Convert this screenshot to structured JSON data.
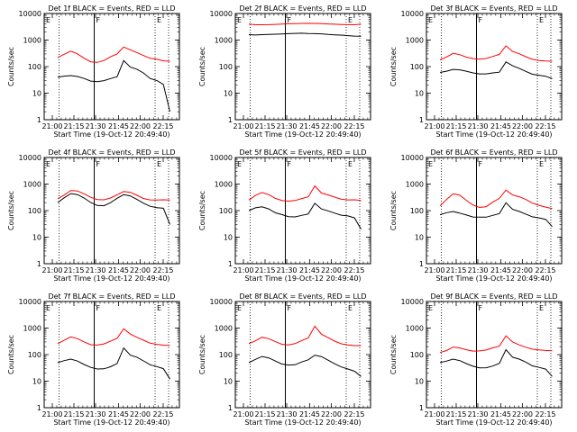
{
  "chart_data": [
    {
      "type": "line",
      "title": "Det 1f BLACK = Events, RED = LLD",
      "xlabel": "Start Time (19-Oct-12 20:49:40)",
      "ylabel": "Counts/sec",
      "yscale": "log",
      "ylim": [
        1,
        10000
      ],
      "xlim": [
        0,
        90
      ],
      "x_ticks": [
        "21:00",
        "21:15",
        "21:30",
        "21:45",
        "22:00",
        "22:15"
      ],
      "y_ticks": [
        "1",
        "10",
        "100",
        "1000",
        "10000"
      ],
      "markers": [
        "E",
        "F",
        "E"
      ],
      "series": [
        {
          "name": "Events",
          "color": "#000000",
          "values": [
            40,
            45,
            48,
            45,
            38,
            30,
            28,
            30,
            35,
            40,
            160,
            90,
            75,
            55,
            35,
            30,
            22,
            2
          ]
        },
        {
          "name": "LLD",
          "color": "#ff0000",
          "values": [
            220,
            300,
            400,
            320,
            220,
            160,
            150,
            170,
            230,
            290,
            520,
            400,
            320,
            250,
            200,
            190,
            170,
            160
          ]
        }
      ]
    },
    {
      "type": "line",
      "title": "Det 2f BLACK = Events, RED = LLD",
      "xlabel": "Start Time (19-Oct-12 20:49:40)",
      "ylabel": "Counts/sec",
      "yscale": "log",
      "ylim": [
        1,
        10000
      ],
      "xlim": [
        0,
        90
      ],
      "x_ticks": [
        "21:00",
        "21:15",
        "21:30",
        "21:45",
        "22:00",
        "22:15"
      ],
      "y_ticks": [
        "1",
        "10",
        "100",
        "1000",
        "10000"
      ],
      "markers": [
        "E",
        "F",
        "E"
      ],
      "series": [
        {
          "name": "Events",
          "color": "#000000",
          "values": [
            1600,
            1650,
            1700,
            1700,
            1700,
            1700,
            1700,
            1700,
            1700,
            1650,
            1650,
            1650,
            1600,
            1600,
            1600,
            1550,
            1500,
            1400
          ]
        },
        {
          "name": "LLD",
          "color": "#ff0000",
          "values": [
            4000,
            4000,
            4000,
            4000,
            4000,
            4000,
            4000,
            4000,
            4000,
            4000,
            4000,
            4000,
            4000,
            4000,
            4000,
            4000,
            4000,
            4000
          ]
        }
      ]
    },
    {
      "type": "line",
      "title": "Det 3f BLACK = Events, RED = LLD",
      "xlabel": "Start Time (19-Oct-12 20:49:40)",
      "ylabel": "Counts/sec",
      "yscale": "log",
      "ylim": [
        1,
        10000
      ],
      "xlim": [
        0,
        90
      ],
      "x_ticks": [
        "21:00",
        "21:15",
        "21:30",
        "21:45",
        "22:00",
        "22:15"
      ],
      "y_ticks": [
        "1",
        "10",
        "100",
        "1000",
        "10000"
      ],
      "markers": [
        "E",
        "F",
        "E"
      ],
      "series": [
        {
          "name": "Events",
          "color": "#000000",
          "values": [
            60,
            70,
            80,
            75,
            65,
            55,
            50,
            50,
            55,
            60,
            150,
            110,
            90,
            70,
            55,
            50,
            45,
            35
          ]
        },
        {
          "name": "LLD",
          "color": "#ff0000",
          "values": [
            180,
            240,
            320,
            280,
            220,
            190,
            180,
            190,
            230,
            280,
            600,
            380,
            320,
            250,
            200,
            180,
            170,
            160
          ]
        }
      ]
    },
    {
      "type": "line",
      "title": "Det 4f BLACK = Events, RED = LLD",
      "xlabel": "Start Time (19-Oct-12 20:49:40)",
      "ylabel": "Counts/sec",
      "yscale": "log",
      "ylim": [
        1,
        10000
      ],
      "xlim": [
        0,
        90
      ],
      "x_ticks": [
        "21:00",
        "21:15",
        "21:30",
        "21:45",
        "22:00",
        "22:15"
      ],
      "y_ticks": [
        "1",
        "10",
        "100",
        "1000",
        "10000"
      ],
      "markers": [
        "E",
        "F",
        "E"
      ],
      "series": [
        {
          "name": "Events",
          "color": "#000000",
          "values": [
            200,
            300,
            420,
            380,
            280,
            190,
            150,
            150,
            200,
            300,
            420,
            380,
            280,
            200,
            150,
            130,
            120,
            30
          ]
        },
        {
          "name": "LLD",
          "color": "#ff0000",
          "values": [
            280,
            380,
            550,
            520,
            400,
            300,
            250,
            250,
            300,
            400,
            550,
            520,
            400,
            300,
            260,
            250,
            250,
            250
          ]
        }
      ]
    },
    {
      "type": "line",
      "title": "Det 5f BLACK = Events, RED = LLD",
      "xlabel": "Start Time (19-Oct-12 20:49:40)",
      "ylabel": "Counts/sec",
      "yscale": "log",
      "ylim": [
        1,
        10000
      ],
      "xlim": [
        0,
        90
      ],
      "x_ticks": [
        "21:00",
        "21:15",
        "21:30",
        "21:45",
        "22:00",
        "22:15"
      ],
      "y_ticks": [
        "1",
        "10",
        "100",
        "1000",
        "10000"
      ],
      "markers": [
        "E",
        "F",
        "E"
      ],
      "series": [
        {
          "name": "Events",
          "color": "#000000",
          "values": [
            100,
            120,
            130,
            110,
            80,
            70,
            60,
            60,
            70,
            80,
            200,
            120,
            100,
            80,
            65,
            60,
            50,
            20
          ]
        },
        {
          "name": "LLD",
          "color": "#ff0000",
          "values": [
            250,
            350,
            450,
            380,
            280,
            240,
            230,
            250,
            300,
            350,
            900,
            480,
            400,
            320,
            260,
            240,
            240,
            240
          ]
        }
      ]
    },
    {
      "type": "line",
      "title": "Det 6f BLACK = Events, RED = LLD",
      "xlabel": "Start Time (19-Oct-12 20:49:40)",
      "ylabel": "Counts/sec",
      "yscale": "log",
      "ylim": [
        1,
        10000
      ],
      "xlim": [
        0,
        90
      ],
      "x_ticks": [
        "21:00",
        "21:15",
        "21:30",
        "21:45",
        "22:00",
        "22:15"
      ],
      "y_ticks": [
        "1",
        "10",
        "100",
        "1000",
        "10000"
      ],
      "markers": [
        "E",
        "F",
        "E"
      ],
      "series": [
        {
          "name": "Events",
          "color": "#000000",
          "values": [
            70,
            80,
            90,
            80,
            70,
            60,
            60,
            60,
            70,
            80,
            200,
            110,
            90,
            70,
            55,
            50,
            45,
            25
          ]
        },
        {
          "name": "LLD",
          "color": "#ff0000",
          "values": [
            150,
            250,
            420,
            380,
            250,
            170,
            140,
            150,
            220,
            300,
            600,
            380,
            320,
            250,
            180,
            150,
            130,
            120
          ]
        }
      ]
    },
    {
      "type": "line",
      "title": "Det 7f BLACK = Events, RED = LLD",
      "xlabel": "Start Time (19-Oct-12 20:49:40)",
      "ylabel": "Counts/sec",
      "yscale": "log",
      "ylim": [
        1,
        10000
      ],
      "xlim": [
        0,
        90
      ],
      "x_ticks": [
        "21:00",
        "21:15",
        "21:30",
        "21:45",
        "22:00",
        "22:15"
      ],
      "y_ticks": [
        "1",
        "10",
        "100",
        "1000",
        "10000"
      ],
      "markers": [
        "E",
        "F",
        "E"
      ],
      "series": [
        {
          "name": "Events",
          "color": "#000000",
          "values": [
            50,
            60,
            70,
            60,
            45,
            35,
            30,
            30,
            35,
            45,
            170,
            90,
            75,
            55,
            40,
            35,
            30,
            12
          ]
        },
        {
          "name": "LLD",
          "color": "#ff0000",
          "values": [
            260,
            350,
            480,
            420,
            320,
            250,
            240,
            260,
            320,
            400,
            900,
            560,
            420,
            330,
            260,
            240,
            230,
            220
          ]
        }
      ]
    },
    {
      "type": "line",
      "title": "Det 8f BLACK = Events, RED = LLD",
      "xlabel": "Start Time (19-Oct-12 20:49:40)",
      "ylabel": "Counts/sec",
      "yscale": "log",
      "ylim": [
        1,
        10000
      ],
      "xlim": [
        0,
        90
      ],
      "x_ticks": [
        "21:00",
        "21:15",
        "21:30",
        "21:45",
        "22:00",
        "22:15"
      ],
      "y_ticks": [
        "1",
        "10",
        "100",
        "1000",
        "10000"
      ],
      "markers": [
        "E",
        "F",
        "E"
      ],
      "series": [
        {
          "name": "Events",
          "color": "#000000",
          "values": [
            50,
            70,
            90,
            80,
            60,
            45,
            40,
            40,
            50,
            60,
            90,
            80,
            60,
            45,
            35,
            30,
            25,
            15
          ]
        },
        {
          "name": "LLD",
          "color": "#ff0000",
          "values": [
            260,
            350,
            480,
            420,
            320,
            250,
            230,
            250,
            320,
            400,
            1100,
            560,
            420,
            320,
            260,
            240,
            230,
            220
          ]
        }
      ]
    },
    {
      "type": "line",
      "title": "Det 9f BLACK = Events, RED = LLD",
      "xlabel": "Start Time (19-Oct-12 20:49:40)",
      "ylabel": "Counts/sec",
      "yscale": "log",
      "ylim": [
        1,
        10000
      ],
      "xlim": [
        0,
        90
      ],
      "x_ticks": [
        "21:00",
        "21:15",
        "21:30",
        "21:45",
        "22:00",
        "22:15"
      ],
      "y_ticks": [
        "1",
        "10",
        "100",
        "1000",
        "10000"
      ],
      "markers": [
        "E",
        "F",
        "E"
      ],
      "series": [
        {
          "name": "Events",
          "color": "#000000",
          "values": [
            50,
            60,
            70,
            60,
            45,
            35,
            30,
            30,
            35,
            45,
            150,
            80,
            70,
            55,
            40,
            35,
            30,
            15
          ]
        },
        {
          "name": "LLD",
          "color": "#ff0000",
          "values": [
            120,
            150,
            200,
            180,
            150,
            130,
            130,
            140,
            170,
            200,
            500,
            300,
            240,
            200,
            170,
            160,
            150,
            140
          ]
        }
      ]
    }
  ]
}
